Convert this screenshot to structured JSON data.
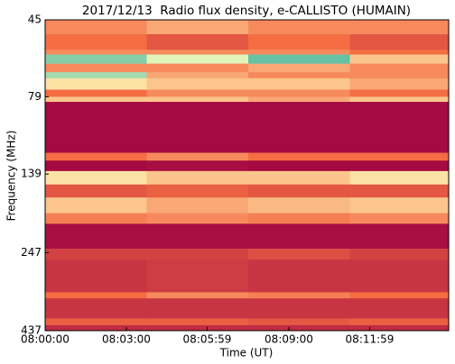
{
  "chart_data": {
    "type": "heatmap",
    "title": "2017/12/13  Radio flux density, e-CALLISTO (HUMAIN)",
    "xlabel": "Time (UT)",
    "ylabel": "Frequency (MHz)",
    "xlim": [
      0,
      894
    ],
    "xticks": [
      {
        "value": 0,
        "label": "08:00:00"
      },
      {
        "value": 180,
        "label": "08:03:00"
      },
      {
        "value": 359,
        "label": "08:05:59"
      },
      {
        "value": 540,
        "label": "08:09:00"
      },
      {
        "value": 719,
        "label": "08:11:59"
      }
    ],
    "ylim": [
      437,
      45
    ],
    "yscale": "log",
    "yticks": [
      45,
      79,
      139,
      247,
      437
    ],
    "x_edges": [
      0,
      225,
      450,
      675,
      894
    ],
    "y_edges": [
      45,
      50,
      56,
      58,
      62,
      66,
      69,
      75,
      79,
      82,
      119,
      126,
      136,
      150,
      165,
      185,
      200,
      240,
      260,
      330,
      345,
      400,
      420,
      437
    ],
    "z": [
      [
        0.3,
        0.35,
        0.3,
        0.3
      ],
      [
        0.25,
        0.2,
        0.25,
        0.2
      ],
      [
        0.3,
        0.3,
        0.3,
        0.25
      ],
      [
        0.7,
        0.55,
        0.75,
        0.4
      ],
      [
        0.3,
        0.3,
        0.35,
        0.3
      ],
      [
        0.65,
        0.35,
        0.3,
        0.3
      ],
      [
        0.45,
        0.4,
        0.4,
        0.35
      ],
      [
        0.25,
        0.3,
        0.3,
        0.25
      ],
      [
        0.4,
        0.4,
        0.35,
        0.4
      ],
      [
        0.02,
        0.02,
        0.02,
        0.02
      ],
      [
        0.25,
        0.3,
        0.25,
        0.25
      ],
      [
        0.02,
        0.03,
        0.02,
        0.02
      ],
      [
        0.45,
        0.4,
        0.4,
        0.45
      ],
      [
        0.2,
        0.22,
        0.2,
        0.2
      ],
      [
        0.4,
        0.35,
        0.38,
        0.4
      ],
      [
        0.28,
        0.3,
        0.28,
        0.3
      ],
      [
        0.03,
        0.03,
        0.03,
        0.03
      ],
      [
        0.15,
        0.15,
        0.18,
        0.15
      ],
      [
        0.12,
        0.14,
        0.12,
        0.12
      ],
      [
        0.25,
        0.3,
        0.28,
        0.25
      ],
      [
        0.12,
        0.12,
        0.12,
        0.12
      ],
      [
        0.22,
        0.22,
        0.2,
        0.22
      ],
      [
        0.1,
        0.1,
        0.1,
        0.1
      ]
    ],
    "colorscale": [
      [
        0,
        "#9e0142"
      ],
      [
        0.25,
        "#f46d43"
      ],
      [
        0.5,
        "#ffffbf"
      ],
      [
        0.75,
        "#66c2a5"
      ],
      [
        1,
        "#3288bd"
      ]
    ]
  }
}
